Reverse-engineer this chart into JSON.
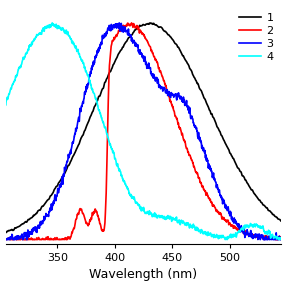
{
  "xlabel": "Wavelength (nm)",
  "xlim": [
    305,
    545
  ],
  "ylim": [
    -0.02,
    1.08
  ],
  "xticks": [
    350,
    400,
    450,
    500
  ],
  "xtick_labels": [
    "350",
    "400",
    "450",
    "500"
  ],
  "legend_labels": [
    "1",
    "2",
    "3",
    "4"
  ],
  "legend_colors": [
    "black",
    "red",
    "blue",
    "cyan"
  ],
  "line_width": 1.2
}
